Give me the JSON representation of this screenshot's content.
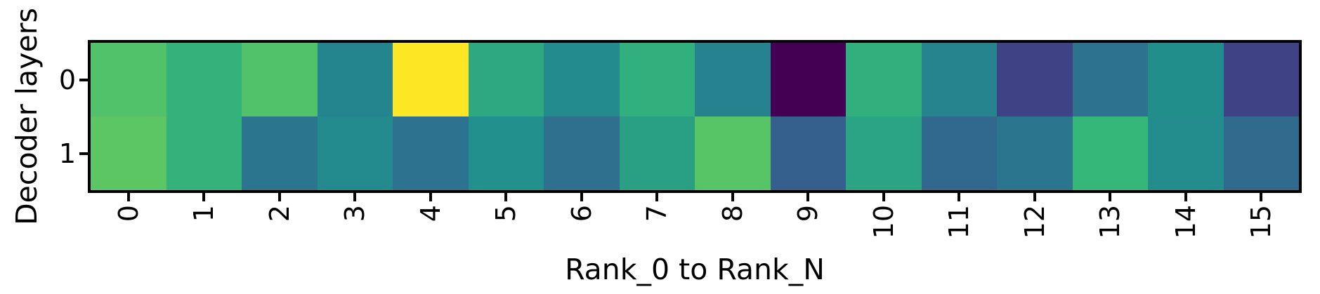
{
  "figure": {
    "background_color": "#ffffff",
    "axis_color": "#000000"
  },
  "chart_data": {
    "type": "heatmap",
    "title": "",
    "xlabel": "Rank_0 to Rank_N",
    "ylabel": "Decoder layers",
    "x_tick_labels": [
      "0",
      "1",
      "2",
      "3",
      "4",
      "5",
      "6",
      "7",
      "8",
      "9",
      "10",
      "11",
      "12",
      "13",
      "14",
      "15"
    ],
    "x_tick_rotation_deg": 90,
    "y_tick_labels": [
      "0",
      "1"
    ],
    "legend": "none",
    "colorbar": "none",
    "colormap": "viridis",
    "value_scale": "normalized colormap position 0-1 (no colorbar shown, values estimated from cell colors)",
    "colormap_stops": [
      {
        "v": 0.0,
        "color": "#440154"
      },
      {
        "v": 0.1,
        "color": "#482878"
      },
      {
        "v": 0.2,
        "color": "#3e4989"
      },
      {
        "v": 0.3,
        "color": "#31688e"
      },
      {
        "v": 0.4,
        "color": "#26828e"
      },
      {
        "v": 0.5,
        "color": "#21918c"
      },
      {
        "v": 0.6,
        "color": "#35b779"
      },
      {
        "v": 0.7,
        "color": "#6dcd59"
      },
      {
        "v": 0.8,
        "color": "#b5de2b"
      },
      {
        "v": 0.9,
        "color": "#dfe318"
      },
      {
        "v": 1.0,
        "color": "#fde725"
      }
    ],
    "rows": [
      {
        "label": "0",
        "values": [
          0.65,
          0.59,
          0.65,
          0.42,
          1.0,
          0.56,
          0.46,
          0.58,
          0.4,
          0.0,
          0.58,
          0.41,
          0.18,
          0.34,
          0.48,
          0.18
        ]
      },
      {
        "label": "1",
        "values": [
          0.67,
          0.59,
          0.35,
          0.46,
          0.34,
          0.49,
          0.33,
          0.54,
          0.66,
          0.27,
          0.55,
          0.3,
          0.35,
          0.6,
          0.47,
          0.31
        ]
      }
    ]
  }
}
